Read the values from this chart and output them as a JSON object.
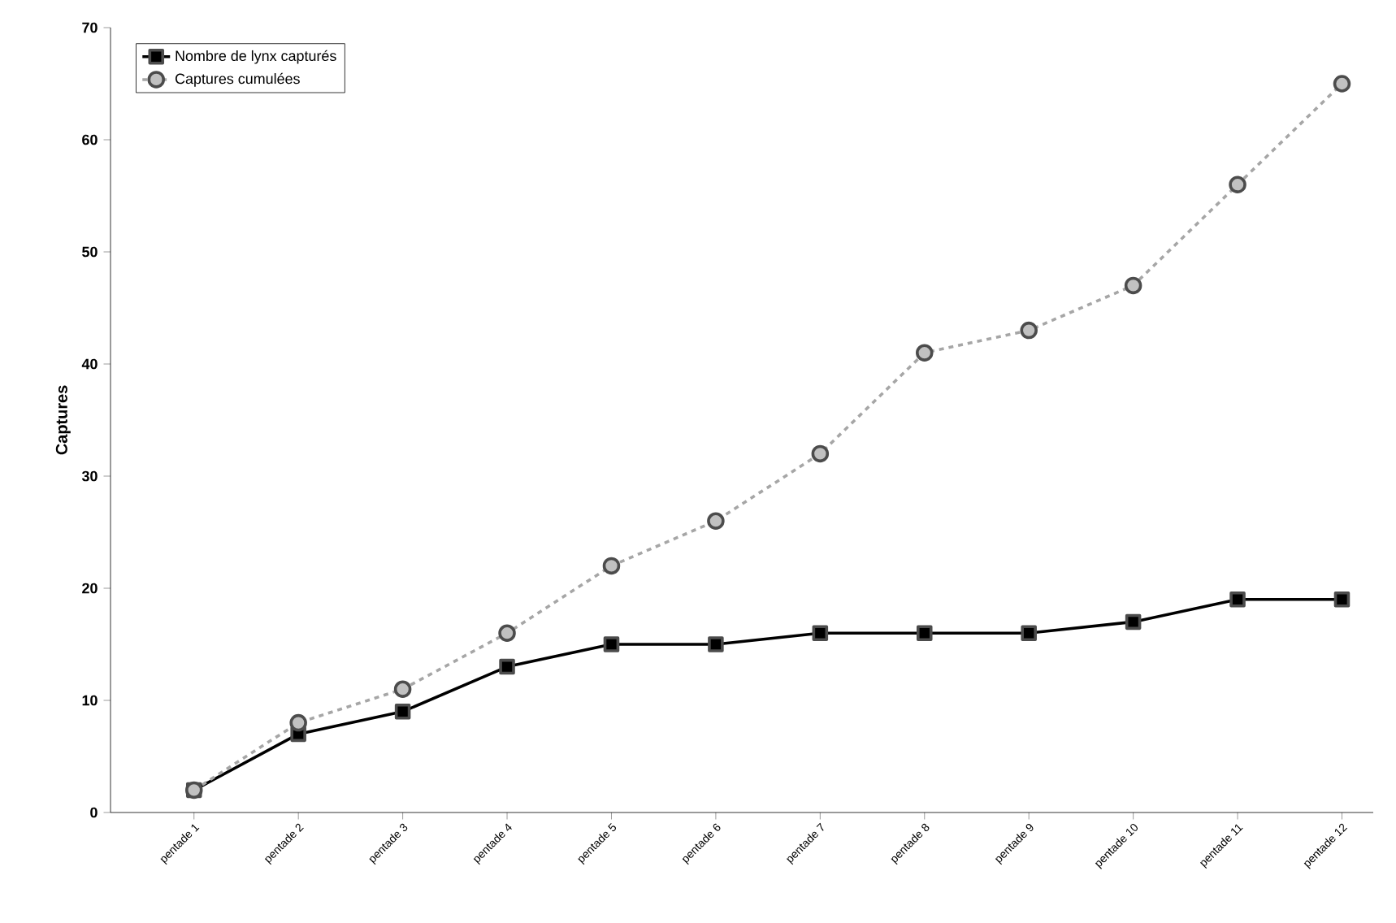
{
  "chart_data": {
    "type": "line",
    "ylabel": "Captures",
    "categories": [
      "pentade 1",
      "pentade 2",
      "pentade 3",
      "pentade 4",
      "pentade 5",
      "pentade 6",
      "pentade 7",
      "pentade 8",
      "pentade 9",
      "pentade 10",
      "pentade 11",
      "pentade 12"
    ],
    "series": [
      {
        "name": "Nombre de lynx capturés",
        "color": "#000000",
        "marker": "square",
        "line_style": "solid",
        "values": [
          2,
          7,
          9,
          13,
          15,
          15,
          16,
          16,
          16,
          17,
          19,
          19
        ]
      },
      {
        "name": "Captures cumulées",
        "color": "#a6a6a6",
        "marker": "circle",
        "line_style": "dashed",
        "values": [
          2,
          8,
          11,
          16,
          22,
          26,
          32,
          41,
          43,
          47,
          56,
          65
        ]
      }
    ],
    "ylim": [
      0,
      70
    ],
    "yticks": [
      0,
      10,
      20,
      30,
      40,
      50,
      60,
      70
    ],
    "grid": false,
    "legend": "top left"
  }
}
